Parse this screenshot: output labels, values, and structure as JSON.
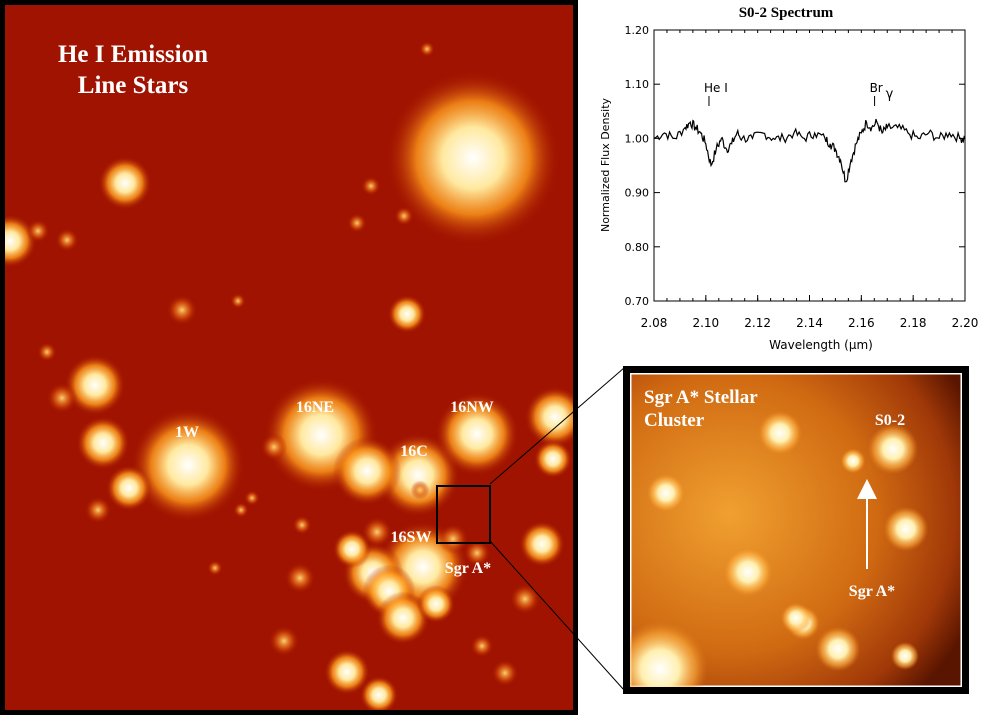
{
  "main_image": {
    "title_line1": "He I Emission",
    "title_line2": "Line Stars",
    "labels": {
      "w1": "1W",
      "ne16": "16NE",
      "nw16": "16NW",
      "c16": "16C",
      "sw16": "16SW",
      "sgra": "Sgr A*"
    }
  },
  "inset_image": {
    "title_line1": "Sgr A* Stellar",
    "title_line2": "Cluster",
    "star_label": "S0-2",
    "arrow_label": "Sgr A*"
  },
  "chart_data": {
    "type": "line",
    "title": "S0-2 Spectrum",
    "xlabel": "Wavelength (μm)",
    "ylabel": "Normalized Flux Density",
    "xlim": [
      2.08,
      2.2
    ],
    "ylim": [
      0.7,
      1.2
    ],
    "xticks": [
      "2.08",
      "2.10",
      "2.12",
      "2.14",
      "2.16",
      "2.18",
      "2.20"
    ],
    "yticks": [
      "0.70",
      "0.80",
      "0.90",
      "1.00",
      "1.10",
      "1.20"
    ],
    "annotations": [
      {
        "text": "He I",
        "x": 2.1016
      },
      {
        "text": "Br",
        "sub": "γ",
        "x": 2.1655
      }
    ],
    "series": [
      {
        "x": [
          2.08,
          2.084,
          2.088,
          2.092,
          2.094,
          2.096,
          2.098,
          2.1,
          2.102,
          2.104,
          2.106,
          2.108,
          2.11,
          2.112,
          2.114,
          2.118,
          2.122,
          2.126,
          2.13,
          2.134,
          2.138,
          2.142,
          2.146,
          2.148,
          2.15,
          2.152,
          2.154,
          2.156,
          2.158,
          2.16,
          2.162,
          2.164,
          2.166,
          2.168,
          2.17,
          2.174,
          2.178,
          2.182,
          2.186,
          2.19,
          2.194,
          2.198,
          2.2
        ],
        "y": [
          1.0,
          1.01,
          1.0,
          1.02,
          1.03,
          1.02,
          1.01,
          0.99,
          0.95,
          0.98,
          1.0,
          0.98,
          0.99,
          1.01,
          1.0,
          1.0,
          1.01,
          1.0,
          1.0,
          1.01,
          1.0,
          1.01,
          1.0,
          0.99,
          0.98,
          0.96,
          0.92,
          0.96,
          0.99,
          1.01,
          1.03,
          1.02,
          1.03,
          1.01,
          1.02,
          1.02,
          1.01,
          1.0,
          1.01,
          1.0,
          1.01,
          1.0,
          1.0
        ]
      }
    ]
  }
}
